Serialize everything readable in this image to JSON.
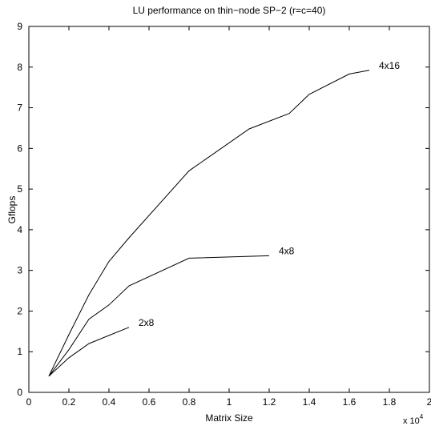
{
  "chart_data": {
    "type": "line",
    "title": "LU performance on thin−node SP−2 (r=c=40)",
    "xlabel": "Matrix Size",
    "ylabel": "Gflops",
    "xlim": [
      0,
      20000
    ],
    "ylim": [
      0,
      9
    ],
    "x_tick_labels": [
      "0",
      "0.2",
      "0.4",
      "0.6",
      "0.8",
      "1",
      "1.2",
      "1.4",
      "1.6",
      "1.8",
      "2"
    ],
    "y_tick_labels": [
      "0",
      "1",
      "2",
      "3",
      "4",
      "5",
      "6",
      "7",
      "8",
      "9"
    ],
    "x_multiplier_base": "x 10",
    "x_multiplier_exponent": "4",
    "grid": false,
    "series": [
      {
        "name": "2x8",
        "x": [
          1000,
          2000,
          3000,
          4000,
          5000
        ],
        "values": [
          0.4,
          0.85,
          1.2,
          1.4,
          1.6
        ]
      },
      {
        "name": "4x8",
        "x": [
          1000,
          2000,
          3000,
          4000,
          5000,
          8000,
          12000
        ],
        "values": [
          0.4,
          1.05,
          1.8,
          2.15,
          2.62,
          3.3,
          3.36
        ]
      },
      {
        "name": "4x16",
        "x": [
          1000,
          2000,
          3000,
          4000,
          5000,
          8000,
          11000,
          13000,
          14000,
          16000,
          17000
        ],
        "values": [
          0.4,
          1.42,
          2.4,
          3.22,
          3.8,
          5.45,
          6.48,
          6.86,
          7.33,
          7.83,
          7.92
        ]
      }
    ]
  }
}
